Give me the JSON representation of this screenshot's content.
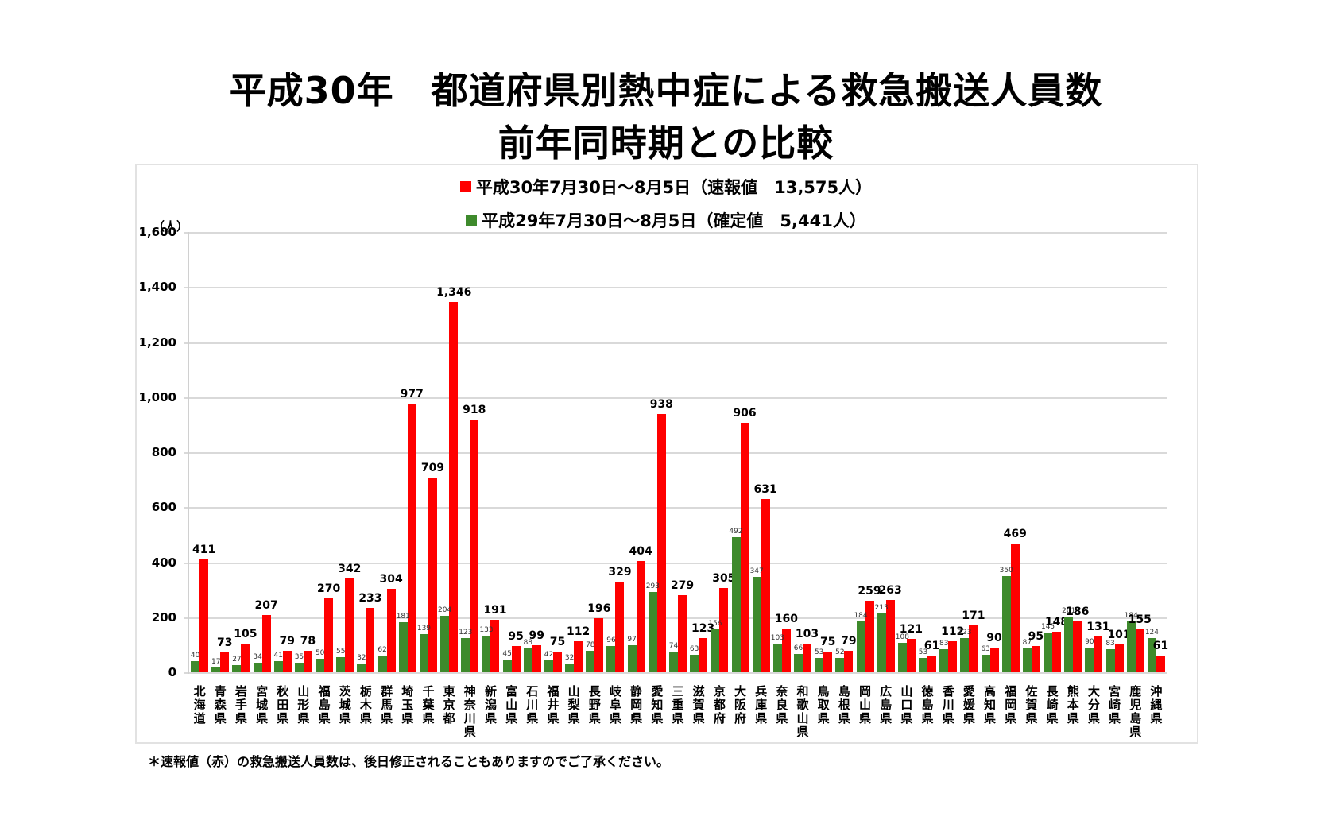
{
  "header": {
    "title_line1": "平成30年　都道府県別熱中症による救急搬送人員数",
    "title_line2": "前年同時期との比較"
  },
  "legend": {
    "series1": "平成30年7月30日～8月5日（速報値　13,575人）",
    "series2": "平成29年7月30日～8月5日（確定値　5,441人）"
  },
  "colors": {
    "series1": "#ff0000",
    "series2": "#3e8a2c",
    "grid": "#d9d9d9"
  },
  "axis": {
    "unit": "（人）",
    "yticks": [
      "1,600",
      "1,400",
      "1,200",
      "1,000",
      "800",
      "600",
      "400",
      "200",
      "0"
    ]
  },
  "footnote": "＊速報値（赤）の救急搬送人員数は、後日修正されることもありますのでご了承ください。",
  "chart_data": {
    "type": "bar",
    "title": "平成30年　都道府県別熱中症による救急搬送人員数 前年同時期との比較",
    "xlabel": "",
    "ylabel": "（人）",
    "ylim": [
      0,
      1600
    ],
    "grid": true,
    "legend_position": "top",
    "categories": [
      "北海道",
      "青森県",
      "岩手県",
      "宮城県",
      "秋田県",
      "山形県",
      "福島県",
      "茨城県",
      "栃木県",
      "群馬県",
      "埼玉県",
      "千葉県",
      "東京都",
      "神奈川県",
      "新潟県",
      "富山県",
      "石川県",
      "福井県",
      "山梨県",
      "長野県",
      "岐阜県",
      "静岡県",
      "愛知県",
      "三重県",
      "滋賀県",
      "京都府",
      "大阪府",
      "兵庫県",
      "奈良県",
      "和歌山県",
      "鳥取県",
      "島根県",
      "岡山県",
      "広島県",
      "山口県",
      "徳島県",
      "香川県",
      "愛媛県",
      "高知県",
      "福岡県",
      "佐賀県",
      "長崎県",
      "熊本県",
      "大分県",
      "宮崎県",
      "鹿児島県",
      "沖縄県"
    ],
    "series": [
      {
        "name": "平成29年7月30日～8月5日（確定値　5,441人）",
        "color": "#3e8a2c",
        "values": [
          40,
          17,
          27,
          34,
          41,
          35,
          50,
          55,
          32,
          62,
          181,
          139,
          204,
          123,
          133,
          45,
          88,
          42,
          32,
          78,
          96,
          97,
          293,
          74,
          63,
          156,
          492,
          347,
          103,
          66,
          53,
          52,
          184,
          213,
          108,
          53,
          83,
          123,
          63,
          350,
          87,
          145,
          201,
          90,
          83,
          184,
          124
        ]
      },
      {
        "name": "平成30年7月30日～8月5日（速報値　13,575人）",
        "color": "#ff0000",
        "values": [
          411,
          73,
          105,
          207,
          79,
          78,
          270,
          342,
          233,
          304,
          977,
          709,
          1346,
          918,
          191,
          95,
          99,
          75,
          112,
          196,
          329,
          404,
          938,
          279,
          123,
          305,
          906,
          631,
          160,
          103,
          75,
          79,
          259,
          263,
          121,
          61,
          112,
          171,
          90,
          469,
          95,
          148,
          186,
          131,
          101,
          155,
          61
        ]
      }
    ]
  }
}
